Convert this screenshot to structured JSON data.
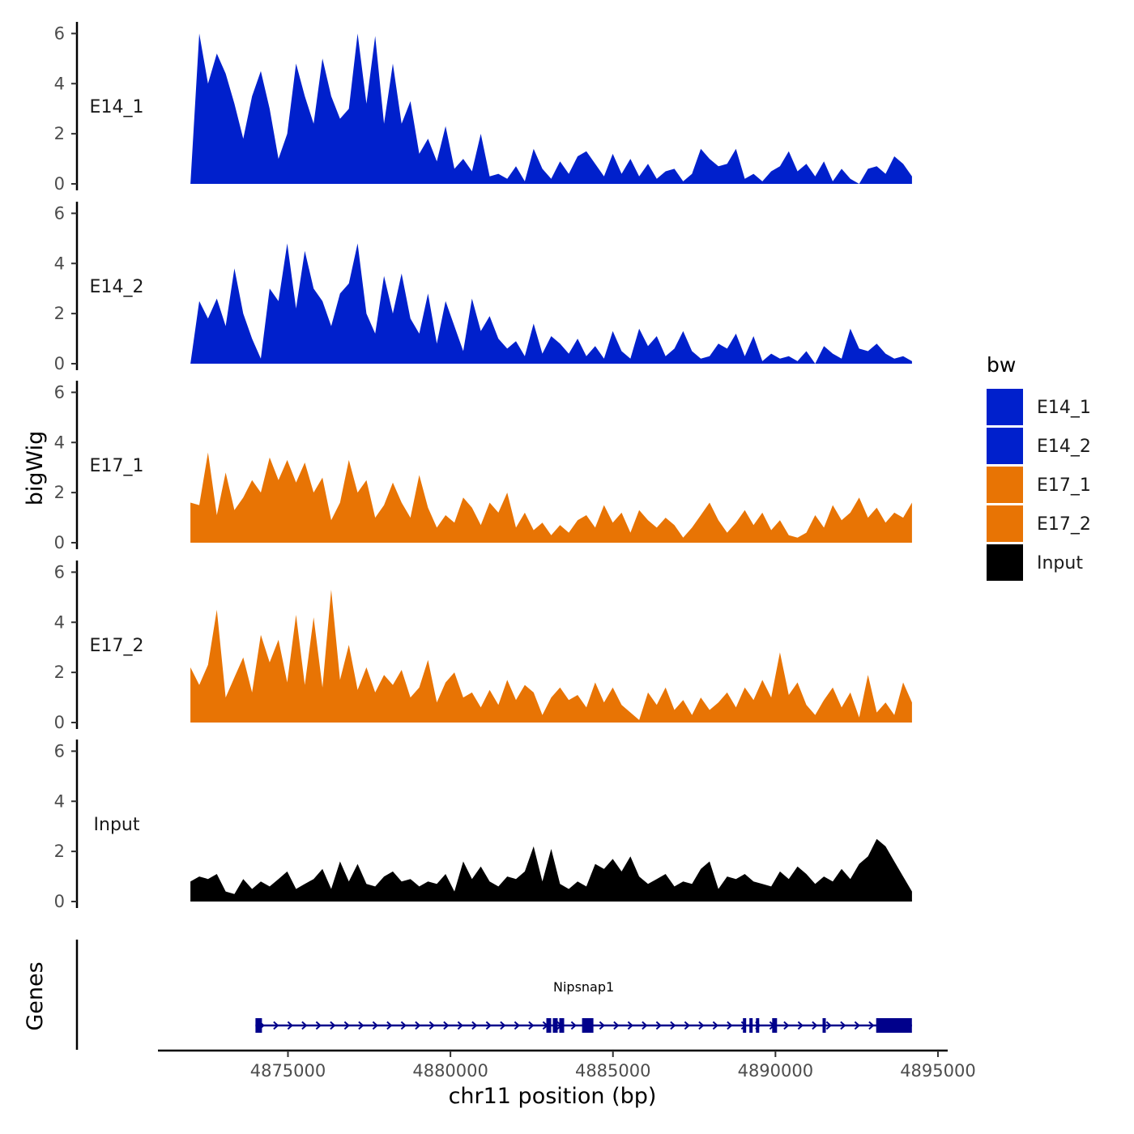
{
  "chart_data": {
    "type": "area",
    "title": "",
    "ylabel": "bigWig",
    "gene_track_label": "Genes",
    "xlabel": "chr11 position (bp)",
    "xlim": [
      4871000,
      4895300
    ],
    "x_ticks": [
      4875000,
      4880000,
      4885000,
      4890000,
      4895000
    ],
    "x_tick_labels": [
      "4875000",
      "4880000",
      "4885000",
      "4890000",
      "4895000"
    ],
    "ylim": [
      0,
      6.4
    ],
    "y_ticks": [
      0,
      2,
      4,
      6
    ],
    "y_tick_labels": [
      "0",
      "2",
      "4",
      "6"
    ],
    "x_start": 4872000,
    "x_end": 4894200,
    "legend": {
      "title": "bw",
      "placement": "right",
      "entries": [
        "E14_1",
        "E14_2",
        "E17_1",
        "E17_2",
        "Input"
      ]
    },
    "series": [
      {
        "name": "E14_1",
        "color": "#0020CC",
        "values": [
          0,
          6.0,
          4.0,
          5.2,
          4.4,
          3.2,
          1.8,
          3.5,
          4.5,
          3.0,
          1.0,
          2.0,
          4.8,
          3.5,
          2.4,
          5.0,
          3.5,
          2.6,
          3.0,
          6.0,
          3.2,
          5.9,
          2.4,
          4.8,
          2.4,
          3.3,
          1.2,
          1.8,
          0.9,
          2.3,
          0.6,
          1.0,
          0.5,
          2.0,
          0.3,
          0.4,
          0.2,
          0.7,
          0.1,
          1.4,
          0.6,
          0.2,
          0.9,
          0.4,
          1.1,
          1.3,
          0.8,
          0.3,
          1.2,
          0.4,
          1.0,
          0.3,
          0.8,
          0.2,
          0.5,
          0.6,
          0.1,
          0.4,
          1.4,
          1.0,
          0.7,
          0.8,
          1.4,
          0.2,
          0.4,
          0.1,
          0.5,
          0.7,
          1.3,
          0.5,
          0.8,
          0.3,
          0.9,
          0.1,
          0.6,
          0.2,
          0.0,
          0.6,
          0.7,
          0.4,
          1.1,
          0.8,
          0.3
        ]
      },
      {
        "name": "E14_2",
        "color": "#0020CC",
        "values": [
          0,
          2.5,
          1.8,
          2.6,
          1.5,
          3.8,
          2.0,
          1.0,
          0.2,
          3.0,
          2.5,
          4.8,
          2.2,
          4.5,
          3.0,
          2.5,
          1.5,
          2.8,
          3.2,
          4.8,
          2.0,
          1.2,
          3.5,
          2.0,
          3.6,
          1.8,
          1.2,
          2.8,
          0.8,
          2.5,
          1.5,
          0.5,
          2.6,
          1.3,
          1.9,
          1.0,
          0.6,
          0.9,
          0.3,
          1.6,
          0.4,
          1.1,
          0.8,
          0.4,
          1.0,
          0.3,
          0.7,
          0.2,
          1.3,
          0.5,
          0.2,
          1.4,
          0.7,
          1.1,
          0.3,
          0.6,
          1.3,
          0.5,
          0.2,
          0.3,
          0.8,
          0.6,
          1.2,
          0.3,
          1.1,
          0.1,
          0.4,
          0.2,
          0.3,
          0.1,
          0.5,
          0.0,
          0.7,
          0.4,
          0.2,
          1.4,
          0.6,
          0.5,
          0.8,
          0.4,
          0.2,
          0.3,
          0.1
        ]
      },
      {
        "name": "E17_1",
        "color": "#E87404",
        "values": [
          1.6,
          1.5,
          3.6,
          1.1,
          2.8,
          1.3,
          1.8,
          2.5,
          2.0,
          3.4,
          2.5,
          3.3,
          2.4,
          3.2,
          2.0,
          2.6,
          0.9,
          1.6,
          3.3,
          2.0,
          2.5,
          1.0,
          1.5,
          2.4,
          1.6,
          1.0,
          2.7,
          1.4,
          0.6,
          1.1,
          0.8,
          1.8,
          1.4,
          0.7,
          1.6,
          1.2,
          2.0,
          0.6,
          1.2,
          0.5,
          0.8,
          0.3,
          0.7,
          0.4,
          0.9,
          1.1,
          0.6,
          1.5,
          0.8,
          1.2,
          0.4,
          1.3,
          0.9,
          0.6,
          1.0,
          0.7,
          0.2,
          0.6,
          1.1,
          1.6,
          0.9,
          0.4,
          0.8,
          1.3,
          0.7,
          1.2,
          0.5,
          0.9,
          0.3,
          0.2,
          0.4,
          1.1,
          0.6,
          1.5,
          0.9,
          1.2,
          1.8,
          1.0,
          1.4,
          0.8,
          1.2,
          1.0,
          1.6
        ]
      },
      {
        "name": "E17_2",
        "color": "#E87404",
        "values": [
          2.2,
          1.5,
          2.3,
          4.5,
          1.0,
          1.8,
          2.6,
          1.2,
          3.5,
          2.4,
          3.3,
          1.6,
          4.3,
          1.5,
          4.2,
          1.4,
          5.3,
          1.7,
          3.1,
          1.3,
          2.2,
          1.2,
          1.9,
          1.5,
          2.1,
          1.0,
          1.4,
          2.5,
          0.8,
          1.6,
          2.0,
          1.0,
          1.2,
          0.6,
          1.3,
          0.7,
          1.7,
          0.9,
          1.5,
          1.2,
          0.3,
          1.0,
          1.4,
          0.9,
          1.1,
          0.6,
          1.6,
          0.8,
          1.4,
          0.7,
          0.4,
          0.1,
          1.2,
          0.7,
          1.4,
          0.5,
          0.9,
          0.3,
          1.0,
          0.5,
          0.8,
          1.2,
          0.6,
          1.4,
          0.9,
          1.7,
          1.0,
          2.8,
          1.1,
          1.6,
          0.7,
          0.3,
          0.9,
          1.4,
          0.6,
          1.2,
          0.2,
          1.9,
          0.4,
          0.8,
          0.3,
          1.6,
          0.8
        ]
      },
      {
        "name": "Input",
        "color": "#000000",
        "values": [
          0.8,
          1.0,
          0.9,
          1.1,
          0.4,
          0.3,
          0.9,
          0.5,
          0.8,
          0.6,
          0.9,
          1.2,
          0.5,
          0.7,
          0.9,
          1.3,
          0.5,
          1.6,
          0.8,
          1.5,
          0.7,
          0.6,
          1.0,
          1.2,
          0.8,
          0.9,
          0.6,
          0.8,
          0.7,
          1.1,
          0.4,
          1.6,
          0.9,
          1.4,
          0.8,
          0.6,
          1.0,
          0.9,
          1.2,
          2.2,
          0.8,
          2.1,
          0.7,
          0.5,
          0.8,
          0.6,
          1.5,
          1.3,
          1.7,
          1.2,
          1.8,
          1.0,
          0.7,
          0.9,
          1.1,
          0.6,
          0.8,
          0.7,
          1.3,
          1.6,
          0.5,
          1.0,
          0.9,
          1.1,
          0.8,
          0.7,
          0.6,
          1.2,
          0.9,
          1.4,
          1.1,
          0.7,
          1.0,
          0.8,
          1.3,
          0.9,
          1.5,
          1.8,
          2.5,
          2.2,
          1.6,
          1.0,
          0.4
        ]
      }
    ],
    "gene": {
      "name": "Nipsnap1",
      "color": "#00008B",
      "start": 4874000,
      "end": 4894200,
      "strand": "+",
      "exons": [
        [
          4874000,
          4874200
        ],
        [
          4882950,
          4883100
        ],
        [
          4883150,
          4883300
        ],
        [
          4883350,
          4883500
        ],
        [
          4884050,
          4884400
        ],
        [
          4889000,
          4889100
        ],
        [
          4889200,
          4889300
        ],
        [
          4889400,
          4889500
        ],
        [
          4889900,
          4890050
        ],
        [
          4891450,
          4891550
        ],
        [
          4893100,
          4894200
        ]
      ]
    }
  }
}
